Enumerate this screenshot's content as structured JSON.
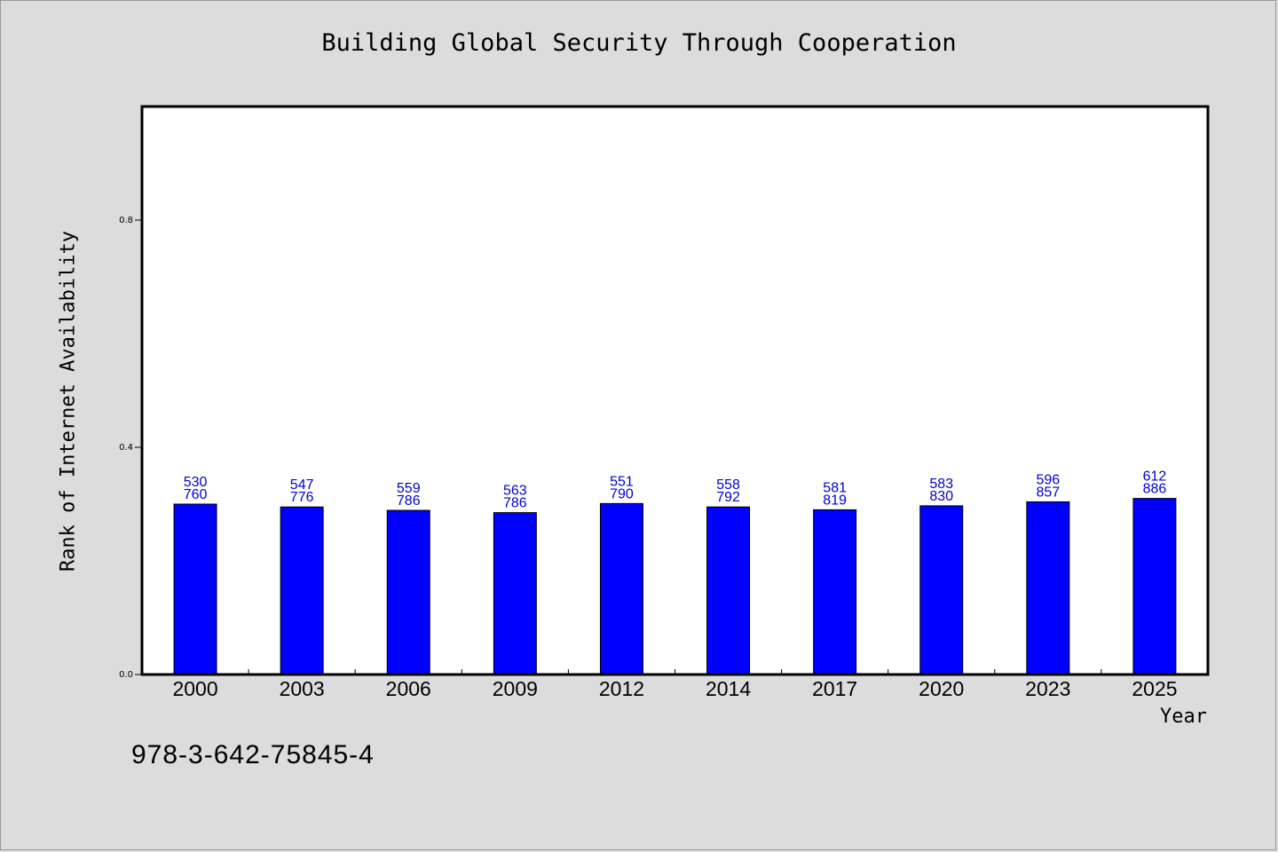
{
  "chart_data": {
    "type": "bar",
    "title": "Building Global Security Through Cooperation",
    "xlabel": "Year",
    "ylabel": "Rank of Internet Availability",
    "categories": [
      "2000",
      "2003",
      "2006",
      "2009",
      "2012",
      "2014",
      "2017",
      "2020",
      "2023",
      "2025"
    ],
    "values": [
      0.3,
      0.295,
      0.289,
      0.285,
      0.301,
      0.295,
      0.29,
      0.297,
      0.304,
      0.31
    ],
    "label_top": [
      "530",
      "547",
      "559",
      "563",
      "551",
      "558",
      "581",
      "583",
      "596",
      "612"
    ],
    "label_bottom": [
      "760",
      "776",
      "786",
      "786",
      "790",
      "792",
      "819",
      "830",
      "857",
      "886"
    ],
    "ylim": [
      0.0,
      1.0
    ],
    "yticks": [
      "0.0",
      "0.4",
      "0.8"
    ],
    "bar_color": "#0000ff",
    "label_color": "#0000cc",
    "grid": false
  },
  "footer": {
    "isbn": "978-3-642-75845-4"
  }
}
